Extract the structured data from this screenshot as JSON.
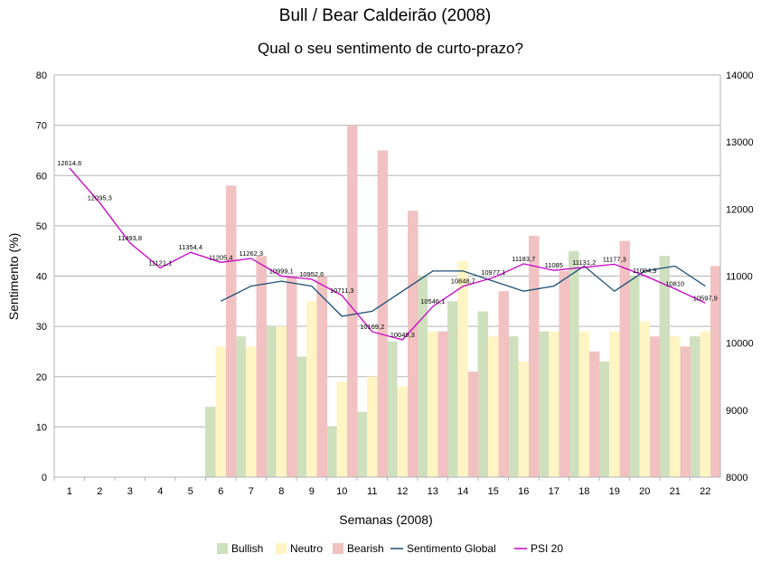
{
  "chart_data": {
    "type": "bar",
    "title": "Bull / Bear Caldeirão (2008)",
    "subtitle": "Qual o seu sentimento de curto-prazo?",
    "xlabel": "Semanas (2008)",
    "ylabel": "Sentimento (%)",
    "ylim": [
      0,
      80
    ],
    "y_ticks": [
      "0",
      "10",
      "20",
      "30",
      "40",
      "50",
      "60",
      "70",
      "80"
    ],
    "y2lim": [
      8000,
      14000
    ],
    "y2_ticks": [
      "8000",
      "9000",
      "10000",
      "11000",
      "12000",
      "13000",
      "14000"
    ],
    "grid": true,
    "legend_position": "bottom",
    "categories": [
      "1",
      "2",
      "3",
      "4",
      "5",
      "6",
      "7",
      "8",
      "9",
      "10",
      "11",
      "12",
      "13",
      "14",
      "15",
      "16",
      "17",
      "18",
      "19",
      "20",
      "21",
      "22"
    ],
    "series": [
      {
        "name": "Bullish",
        "kind": "bar",
        "color": "#cfe0bf",
        "values": [
          null,
          null,
          null,
          null,
          null,
          14,
          28,
          30,
          24,
          10,
          13,
          27,
          40,
          35,
          33,
          28,
          29,
          45,
          23,
          40,
          44,
          28
        ]
      },
      {
        "name": "Neutro",
        "kind": "bar",
        "color": "#fff5c4",
        "values": [
          null,
          null,
          null,
          null,
          null,
          26,
          26,
          30,
          35,
          19,
          20,
          18,
          29,
          43,
          28,
          23,
          29,
          29,
          29,
          31,
          28,
          29
        ]
      },
      {
        "name": "Bearish",
        "kind": "bar",
        "color": "#f2c2c2",
        "values": [
          null,
          null,
          null,
          null,
          null,
          58,
          44,
          40,
          40,
          70,
          65,
          53,
          29,
          21,
          37,
          48,
          41,
          25,
          47,
          28,
          26,
          42
        ]
      },
      {
        "name": "Sentimento Global",
        "kind": "line",
        "axis": "left",
        "color": "#1b4f75",
        "values": [
          null,
          null,
          null,
          null,
          null,
          35,
          38,
          39,
          38,
          32,
          33,
          37,
          41,
          41,
          39,
          37,
          38,
          42,
          37,
          41,
          42,
          38
        ]
      },
      {
        "name": "PSI 20",
        "kind": "line",
        "axis": "right",
        "color": "#c800c8",
        "values": [
          12614.6,
          12095.3,
          11493.8,
          11121.1,
          11354.4,
          11205.4,
          11262.3,
          10999.1,
          10952.6,
          10711.3,
          10169.2,
          10049.3,
          10546.1,
          10848.7,
          10977.1,
          11183.7,
          11085,
          11131.2,
          11177.3,
          11004.9,
          10810,
          10597.9
        ],
        "labels": [
          "12614,6",
          "12095,3",
          "11493,8",
          "11121,1",
          "11354,4",
          "11205,4",
          "11262,3",
          "10999,1",
          "10952,6",
          "10711,3",
          "10169,2",
          "10049,3",
          "10546,1",
          "10848,7",
          "10977,1",
          "11183,7",
          "11085",
          "11131,2",
          "11177,3",
          "11004,9",
          "10810",
          "10597,9"
        ]
      }
    ]
  }
}
